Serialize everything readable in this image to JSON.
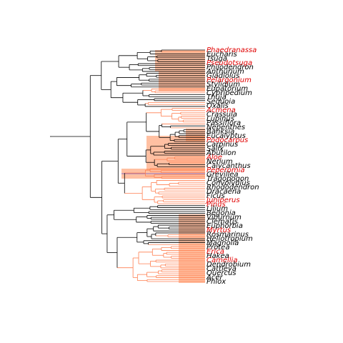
{
  "colors": {
    "background": "#ffffff",
    "backbone": "#000000",
    "highlight_branch": "#ff7f50",
    "highlight_fill": "#ff8c55",
    "blue_branch": "#6a5acd",
    "label_black": "#000000",
    "label_red": "#e00000"
  },
  "tree": {
    "visible_labels": [
      "Phaedranassa",
      "Eucharis",
      "Tsuga",
      "Pseudotsuga",
      "Philodendron",
      "Anthurium",
      "Gladiolus",
      "Pelargonium",
      "Stylidium",
      "Eupatorium",
      "Cypripedium",
      "Thuja",
      "Sequoia",
      "Oxalis",
      "Acmena",
      "Crassula",
      "Lupinus",
      "Passiflora",
      "Nepenthes",
      "Banksia",
      "Eucalyptus",
      "Podocarpus",
      "Carpinus",
      "Salix",
      "Abutilon",
      "Aloe",
      "Nerium",
      "Calycanthus",
      "Peperomia",
      "Grevillea",
      "Tragopogon",
      "Convolvulus",
      "Rhododendron",
      "Dracaena",
      "Ficus",
      "Juniperus",
      "Pinus",
      "Lilium",
      "Begonia",
      "Viburnum",
      "Clematis",
      "Euphorbia",
      "Myrtus",
      "Rosmarinus",
      "Heliotropium",
      "Magnolia",
      "Protea",
      "Erica",
      "Hakea",
      "Camellia",
      "Dendrobium",
      "Cattleya",
      "Quercus",
      "Acer",
      "Phlox"
    ]
  }
}
